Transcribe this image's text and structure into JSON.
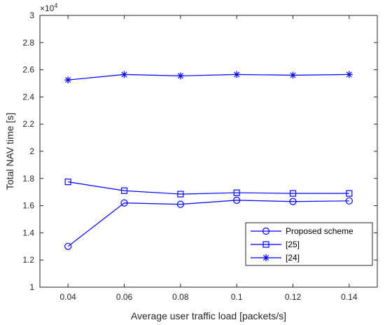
{
  "chart_data": {
    "type": "line",
    "xlabel": "Average user traffic load [packets/s]",
    "ylabel": "Total NAV time [s]",
    "y_exponent_label": "×10",
    "y_exponent_power": "4",
    "xlim": [
      0.03,
      0.15
    ],
    "ylim": [
      1,
      3
    ],
    "x_ticks": [
      0.04,
      0.06,
      0.08,
      0.1,
      0.12,
      0.14
    ],
    "x_tick_labels": [
      "0.04",
      "0.06",
      "0.08",
      "0.1",
      "0.12",
      "0.14"
    ],
    "y_ticks": [
      1,
      1.2,
      1.4,
      1.6,
      1.8,
      2,
      2.2,
      2.4,
      2.6,
      2.8,
      3
    ],
    "y_tick_labels": [
      "1",
      "1.2",
      "1.4",
      "1.6",
      "1.8",
      "2",
      "2.2",
      "2.4",
      "2.6",
      "2.8",
      "3"
    ],
    "grid": false,
    "legend_position": "bottom-right",
    "line_color": "#0000ff",
    "x": [
      0.04,
      0.06,
      0.08,
      0.1,
      0.12,
      0.14
    ],
    "series": [
      {
        "name": "Proposed scheme",
        "marker": "circle",
        "values": [
          1.3,
          1.62,
          1.61,
          1.64,
          1.63,
          1.635
        ]
      },
      {
        "name": "[25]",
        "marker": "square",
        "values": [
          1.775,
          1.71,
          1.685,
          1.695,
          1.69,
          1.69
        ]
      },
      {
        "name": "[24]",
        "marker": "asterisk",
        "values": [
          2.525,
          2.565,
          2.555,
          2.565,
          2.56,
          2.565
        ]
      }
    ]
  }
}
